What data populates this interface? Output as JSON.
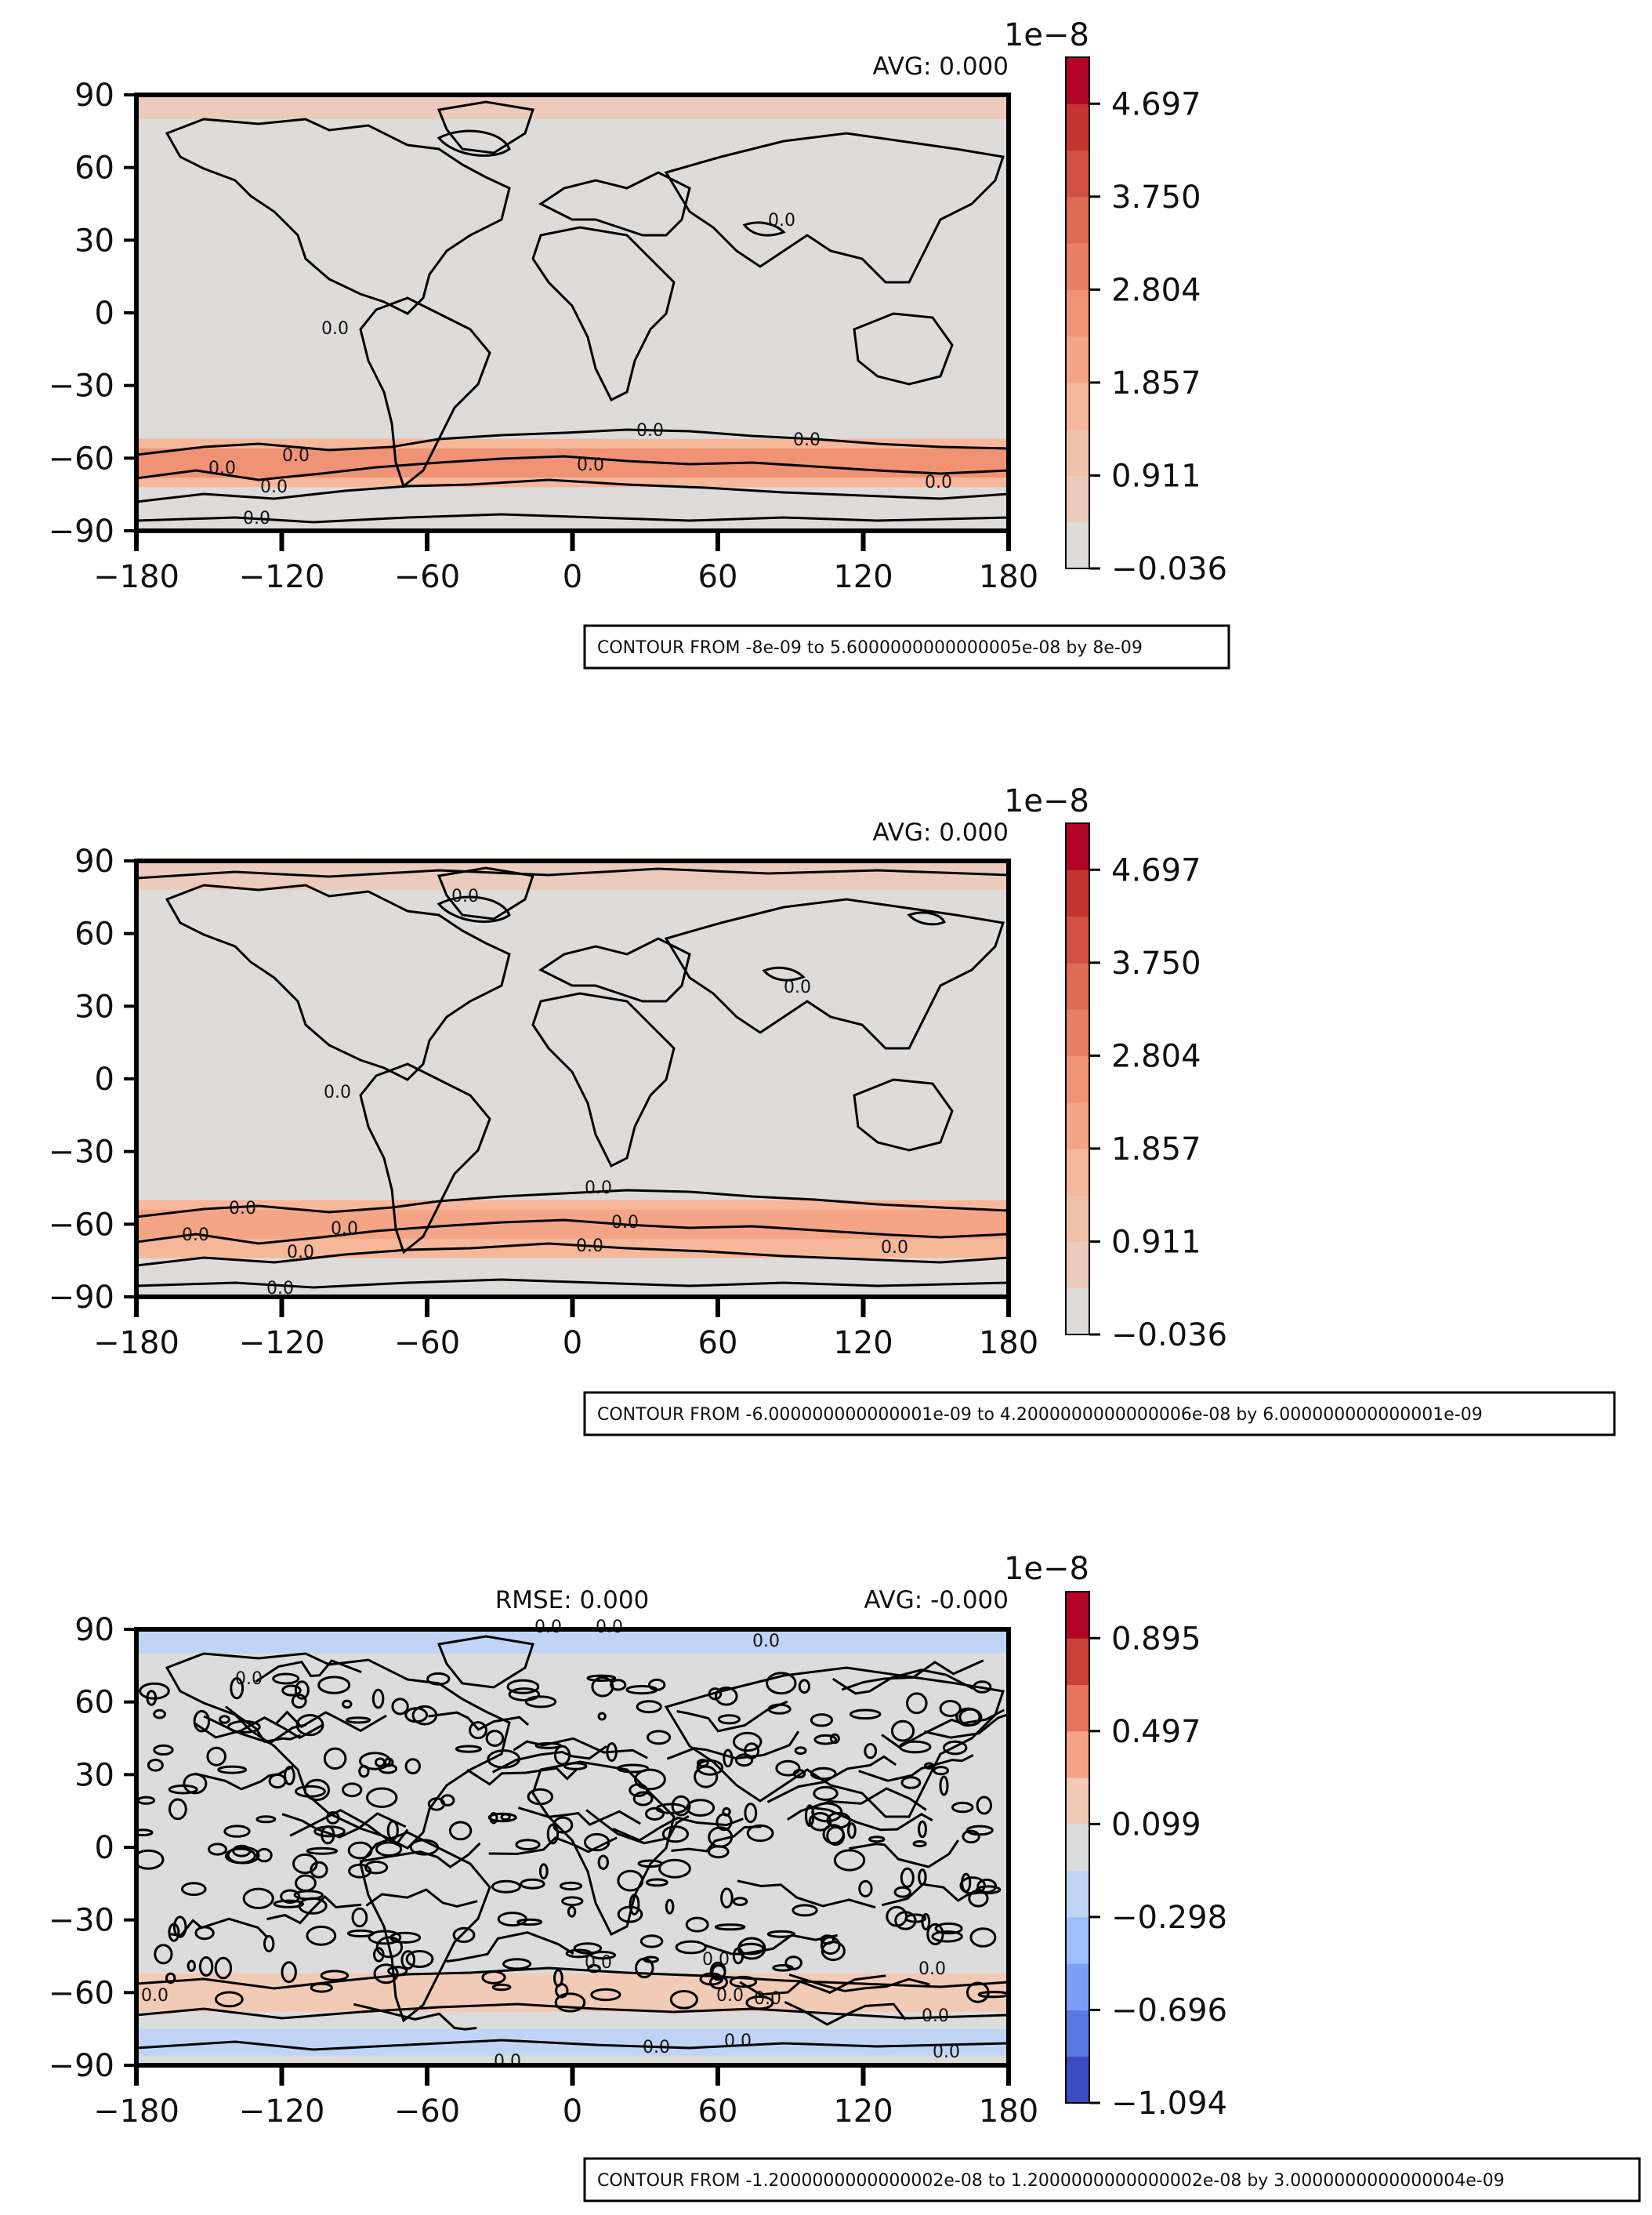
{
  "chart_data": [
    {
      "type": "heatmap",
      "subtype": "filled contour map",
      "avg_label": "AVG: 0.000",
      "rmse_label": "",
      "note": "CONTOUR FROM -8e-09 to 5.6000000000000005e-08 by 8e-09",
      "x_ticks": [
        -180,
        -120,
        -60,
        0,
        60,
        120,
        180
      ],
      "y_ticks": [
        90,
        60,
        30,
        0,
        -30,
        -60,
        -90
      ],
      "xlim": [
        -180,
        180
      ],
      "ylim": [
        -90,
        90
      ],
      "colorbar": {
        "offset_label": "1e−8",
        "ticks": [
          "4.697",
          "3.750",
          "2.804",
          "1.857",
          "0.911",
          "−0.036"
        ],
        "vmin": -0.036,
        "vmax": 5.17,
        "colors": [
          "#dedcdb",
          "#eccbbd",
          "#f1c2aa",
          "#f6b79a",
          "#f4a585",
          "#ef9374",
          "#e87e63",
          "#de6a52",
          "#d25043",
          "#c43532",
          "#b40426"
        ]
      },
      "contour_labels": [
        "0.0"
      ],
      "field_bands": [
        {
          "lat": [
            80,
            90
          ],
          "value": 0.6
        },
        {
          "lat": [
            -72,
            -52
          ],
          "value": 1.6
        },
        {
          "lat": [
            -68,
            -56
          ],
          "value": 2.4
        }
      ]
    },
    {
      "type": "heatmap",
      "subtype": "filled contour map",
      "avg_label": "AVG: 0.000",
      "rmse_label": "",
      "note": "CONTOUR FROM -6.000000000000001e-09 to 4.2000000000000006e-08 by 6.000000000000001e-09",
      "x_ticks": [
        -180,
        -120,
        -60,
        0,
        60,
        120,
        180
      ],
      "y_ticks": [
        90,
        60,
        30,
        0,
        -30,
        -60,
        -90
      ],
      "xlim": [
        -180,
        180
      ],
      "ylim": [
        -90,
        90
      ],
      "colorbar": {
        "offset_label": "1e−8",
        "ticks": [
          "4.697",
          "3.750",
          "2.804",
          "1.857",
          "0.911",
          "−0.036"
        ],
        "vmin": -0.036,
        "vmax": 5.17,
        "colors": [
          "#dedcdb",
          "#eccbbd",
          "#f1c2aa",
          "#f6b79a",
          "#f4a585",
          "#ef9374",
          "#e87e63",
          "#de6a52",
          "#d25043",
          "#c43532",
          "#b40426"
        ]
      },
      "contour_labels": [
        "0.0"
      ],
      "field_bands": [
        {
          "lat": [
            78,
            90
          ],
          "value": 0.6
        },
        {
          "lat": [
            -74,
            -50
          ],
          "value": 1.4
        },
        {
          "lat": [
            -66,
            -54
          ],
          "value": 2.2
        }
      ]
    },
    {
      "type": "heatmap",
      "subtype": "filled contour map",
      "avg_label": "AVG: -0.000",
      "rmse_label": "RMSE: 0.000",
      "note": "CONTOUR FROM -1.2000000000000002e-08 to 1.2000000000000002e-08 by 3.0000000000000004e-09",
      "x_ticks": [
        -180,
        -120,
        -60,
        0,
        60,
        120,
        180
      ],
      "y_ticks": [
        90,
        60,
        30,
        0,
        -30,
        -60,
        -90
      ],
      "xlim": [
        -180,
        180
      ],
      "ylim": [
        -90,
        90
      ],
      "colorbar": {
        "offset_label": "1e−8",
        "ticks": [
          "0.895",
          "0.497",
          "0.099",
          "−0.298",
          "−0.696",
          "−1.094"
        ],
        "vmin": -1.094,
        "vmax": 1.094,
        "colors": [
          "#3b4cc0",
          "#5a78e4",
          "#7b9ff9",
          "#9ebeff",
          "#c0d4f5",
          "#dddcdc",
          "#f2cbb7",
          "#f6a385",
          "#e7745b",
          "#cc403a",
          "#b40426"
        ]
      },
      "contour_labels": [
        "0.0"
      ],
      "field_bands": [
        {
          "lat": [
            -68,
            -52
          ],
          "value": 0.2
        },
        {
          "lat": [
            -86,
            -75
          ],
          "value": -0.2
        },
        {
          "lat": [
            80,
            90
          ],
          "value": -0.2
        }
      ]
    }
  ]
}
